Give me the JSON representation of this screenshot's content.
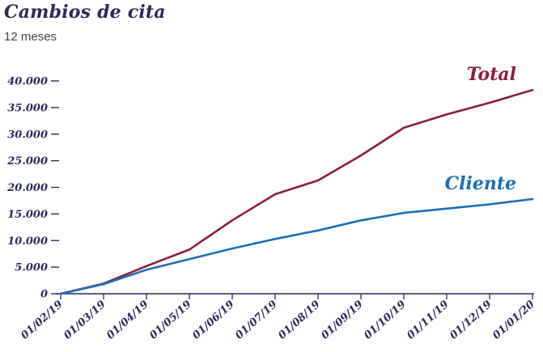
{
  "chart_data": {
    "type": "line",
    "title": "Cambios de cita",
    "subtitle": "12 meses",
    "xlabel": "",
    "ylabel": "",
    "x": [
      "01/02/19",
      "01/03/19",
      "01/04/19",
      "01/05/19",
      "01/06/19",
      "01/07/19",
      "01/08/19",
      "01/09/19",
      "01/10/19",
      "01/11/19",
      "01/12/19",
      "01/01/20"
    ],
    "ylim": [
      0,
      40000
    ],
    "y_ticks": [
      "0",
      "5.000",
      "10.000",
      "15.000",
      "20.000",
      "25.000",
      "30.000",
      "35.000",
      "40.000"
    ],
    "y_tick_values": [
      0,
      5000,
      10000,
      15000,
      20000,
      25000,
      30000,
      35000,
      40000
    ],
    "grid": false,
    "series": [
      {
        "name": "Total",
        "color": "#8b1e3f",
        "values": [
          0,
          1900,
          5200,
          8300,
          13800,
          18700,
          21300,
          26000,
          31200,
          33700,
          35900,
          38300
        ]
      },
      {
        "name": "Cliente",
        "color": "#1a6fb5",
        "values": [
          0,
          1800,
          4500,
          6500,
          8500,
          10300,
          11900,
          13800,
          15200,
          16000,
          16800,
          17800
        ]
      }
    ]
  }
}
